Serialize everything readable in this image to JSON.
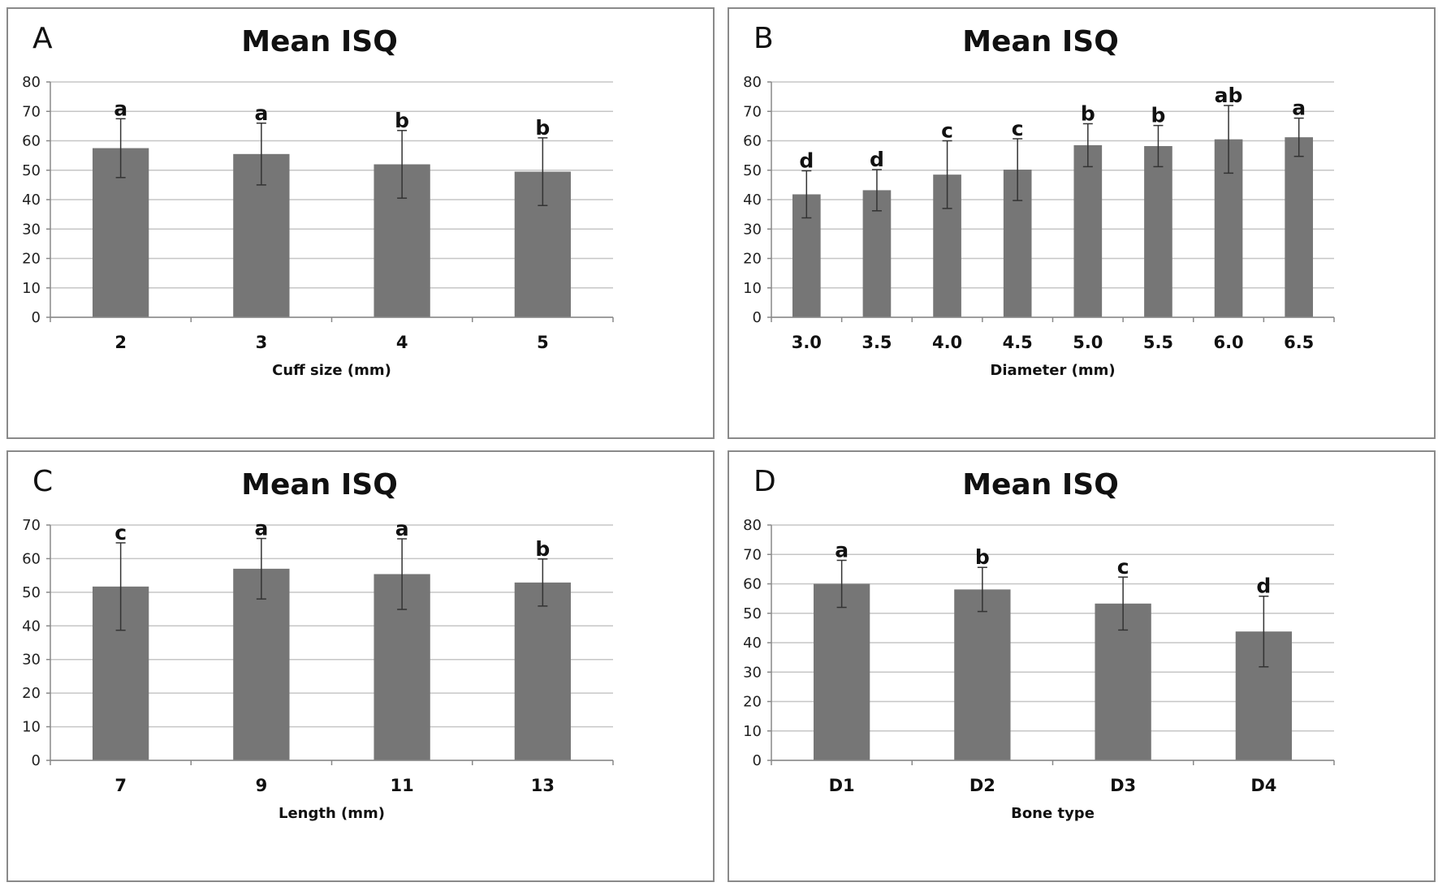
{
  "chart_data": [
    {
      "panel": "A",
      "type": "bar",
      "title": "Mean ISQ",
      "xlabel": "Cuff size (mm)",
      "ylabel": "",
      "ylim": [
        0,
        80
      ],
      "yticks": [
        0,
        10,
        20,
        30,
        40,
        50,
        60,
        70,
        80
      ],
      "categories": [
        "2",
        "3",
        "4",
        "5"
      ],
      "values": [
        57.5,
        55.5,
        52,
        49.5
      ],
      "error": [
        10,
        10.5,
        11.5,
        11.5
      ],
      "labels": [
        "a",
        "a",
        "b",
        "b"
      ],
      "grid": true,
      "color": "#767676"
    },
    {
      "panel": "B",
      "type": "bar",
      "title": "Mean ISQ",
      "xlabel": "Diameter (mm)",
      "ylabel": "",
      "ylim": [
        0,
        80
      ],
      "yticks": [
        0,
        10,
        20,
        30,
        40,
        50,
        60,
        70,
        80
      ],
      "categories": [
        "3.0",
        "3.5",
        "4.0",
        "4.5",
        "5.0",
        "5.5",
        "6.0",
        "6.5"
      ],
      "values": [
        41.8,
        43.2,
        48.5,
        50.2,
        58.5,
        58.2,
        60.5,
        61.2
      ],
      "error": [
        8,
        7,
        11.5,
        10.5,
        7.3,
        7,
        11.5,
        6.5
      ],
      "labels": [
        "d",
        "d",
        "c",
        "c",
        "b",
        "b",
        "ab",
        "a"
      ],
      "grid": true,
      "color": "#767676"
    },
    {
      "panel": "C",
      "type": "bar",
      "title": "Mean ISQ",
      "xlabel": "Length (mm)",
      "ylabel": "",
      "ylim": [
        0,
        70
      ],
      "yticks": [
        0,
        10,
        20,
        30,
        40,
        50,
        60,
        70
      ],
      "categories": [
        "7",
        "9",
        "11",
        "13"
      ],
      "values": [
        51.7,
        57,
        55.4,
        52.9
      ],
      "error": [
        13,
        9,
        10.5,
        7
      ],
      "labels": [
        "c",
        "a",
        "a",
        "b"
      ],
      "grid": true,
      "color": "#767676"
    },
    {
      "panel": "D",
      "type": "bar",
      "title": "Mean ISQ",
      "xlabel": "Bone type",
      "ylabel": "",
      "ylim": [
        0,
        80
      ],
      "yticks": [
        0,
        10,
        20,
        30,
        40,
        50,
        60,
        70,
        80
      ],
      "categories": [
        "D1",
        "D2",
        "D3",
        "D4"
      ],
      "values": [
        60,
        58.1,
        53.3,
        43.8
      ],
      "error": [
        8,
        7.5,
        9,
        12
      ],
      "labels": [
        "a",
        "b",
        "c",
        "d"
      ],
      "grid": true,
      "color": "#767676"
    }
  ]
}
